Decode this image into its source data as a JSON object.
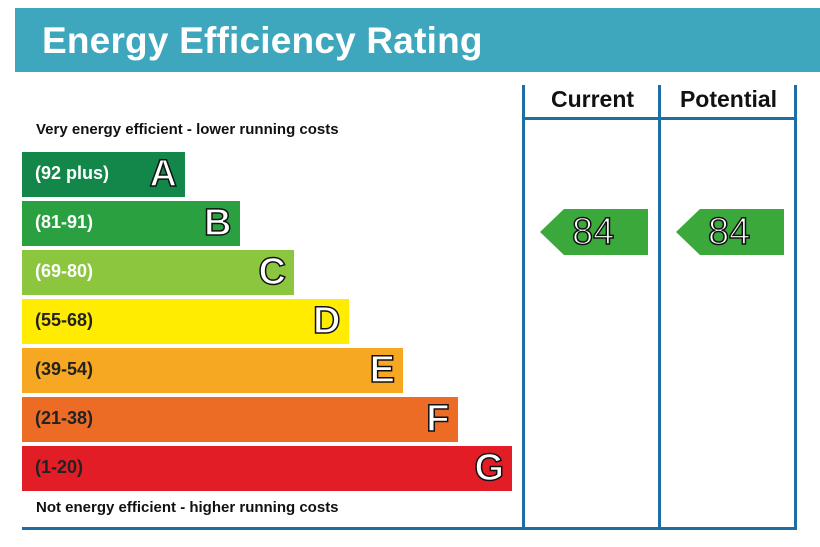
{
  "title": "Energy Efficiency Rating",
  "columns": {
    "current": "Current",
    "potential": "Potential"
  },
  "top_note": "Very energy efficient - lower running costs",
  "bottom_note": "Not energy efficient - higher running costs",
  "chart_data": {
    "type": "bar",
    "title": "Energy Efficiency Rating",
    "bands": [
      {
        "letter": "A",
        "range": "(92 plus)",
        "color": "#13874a"
      },
      {
        "letter": "B",
        "range": "(81-91)",
        "color": "#2aa041"
      },
      {
        "letter": "C",
        "range": "(69-80)",
        "color": "#8cc63f"
      },
      {
        "letter": "D",
        "range": "(55-68)",
        "color": "#ffec00"
      },
      {
        "letter": "E",
        "range": "(39-54)",
        "color": "#f7a823"
      },
      {
        "letter": "F",
        "range": "(21-38)",
        "color": "#ec6c25"
      },
      {
        "letter": "G",
        "range": "(1-20)",
        "color": "#e31d25"
      }
    ],
    "current": {
      "value": 84,
      "band": "B",
      "color": "#3aa83a"
    },
    "potential": {
      "value": 84,
      "band": "B",
      "color": "#3aa83a"
    }
  }
}
